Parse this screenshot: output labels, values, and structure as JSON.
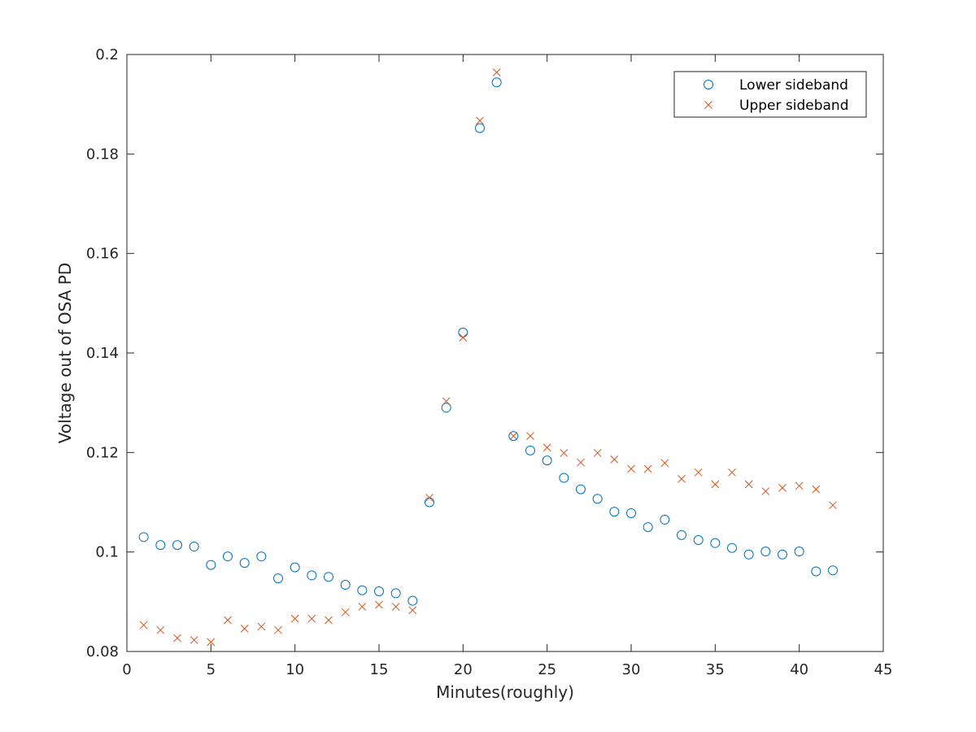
{
  "chart_data": {
    "type": "scatter",
    "xlabel": "Minutes(roughly)",
    "ylabel": "Voltage out of OSA PD",
    "xlim": [
      0,
      45
    ],
    "ylim": [
      0.08,
      0.2
    ],
    "xticks": [
      0,
      5,
      10,
      15,
      20,
      25,
      30,
      35,
      40,
      45
    ],
    "xtick_labels": [
      "0",
      "5",
      "10",
      "15",
      "20",
      "25",
      "30",
      "35",
      "40",
      "45"
    ],
    "yticks": [
      0.08,
      0.1,
      0.12,
      0.14,
      0.16,
      0.18,
      0.2
    ],
    "ytick_labels": [
      "0.08",
      "0.1",
      "0.12",
      "0.14",
      "0.16",
      "0.18",
      "0.2"
    ],
    "grid": false,
    "legend_position": "top-right",
    "x": [
      1,
      2,
      3,
      4,
      5,
      6,
      7,
      8,
      9,
      10,
      11,
      12,
      13,
      14,
      15,
      16,
      17,
      18,
      19,
      20,
      21,
      22,
      23,
      24,
      25,
      26,
      27,
      28,
      29,
      30,
      31,
      32,
      33,
      34,
      35,
      36,
      37,
      38,
      39,
      40,
      41,
      42
    ],
    "series": [
      {
        "name": "Lower sideband",
        "marker": "circle",
        "color": "#0072BD",
        "values": [
          0.103,
          0.1014,
          0.1014,
          0.1011,
          0.0974,
          0.0991,
          0.0978,
          0.0991,
          0.0947,
          0.0969,
          0.0953,
          0.095,
          0.0934,
          0.0923,
          0.0921,
          0.0917,
          0.0902,
          0.11,
          0.129,
          0.1441,
          0.1852,
          0.1944,
          0.1233,
          0.1204,
          0.1184,
          0.1149,
          0.1126,
          0.1107,
          0.1081,
          0.1078,
          0.105,
          0.1065,
          0.1034,
          0.1024,
          0.1018,
          0.1008,
          0.0995,
          0.1001,
          0.0995,
          0.1001,
          0.0961,
          0.0963
        ]
      },
      {
        "name": "Upper sideband",
        "marker": "x",
        "color": "#D95319",
        "values": [
          0.0853,
          0.0843,
          0.0827,
          0.0823,
          0.0819,
          0.0863,
          0.0846,
          0.085,
          0.0843,
          0.0866,
          0.0866,
          0.0863,
          0.0879,
          0.089,
          0.0894,
          0.089,
          0.0883,
          0.1109,
          0.1303,
          0.1431,
          0.1867,
          0.1964,
          0.1233,
          0.1233,
          0.121,
          0.1199,
          0.118,
          0.1199,
          0.1186,
          0.1167,
          0.1167,
          0.1179,
          0.1147,
          0.116,
          0.1136,
          0.116,
          0.1136,
          0.1122,
          0.1129,
          0.1133,
          0.1126,
          0.1094
        ]
      }
    ]
  }
}
